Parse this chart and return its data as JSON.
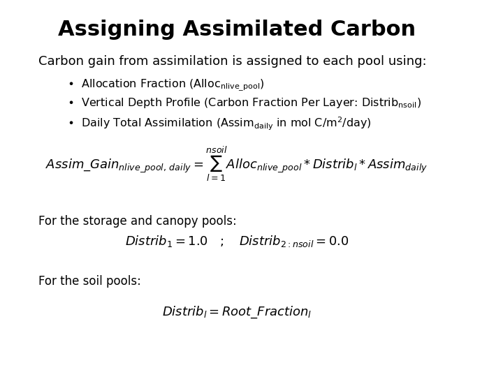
{
  "title": "Assigning Assimilated Carbon",
  "title_fontsize": 22,
  "title_fontweight": "bold",
  "bg_color": "#ffffff",
  "text_color": "#000000",
  "subtitle": "Carbon gain from assimilation is assigned to each pool using:",
  "subtitle_fontsize": 13,
  "bullet1": "Allocation Fraction (Alloc",
  "bullet1_sub": "nlive_pool",
  "bullet2_pre": "Vertical Depth Profile (Carbon Fraction Per Layer: Distrib",
  "bullet2_sub": "nsoil",
  "bullet3_pre": "Daily Total Assimilation (Assim",
  "bullet3_sub": "daily",
  "bullet3_post": " in mol C/m²/day)",
  "storage_label": "For the storage and canopy pools:",
  "soil_label": "For the soil pools:",
  "eq1": "Assim\\_Gain_{nlive\\_pool,\\,daily} = \\sum_{l=1}^{nsoil} Alloc_{nlive\\_pool} * Distrib_l * Assim_{daily}",
  "eq2": "Distrib_l = 1.0 \\quad ; \\quad Distrib_{2:nsoil} = 0.0",
  "eq3": "Distrib_l = Root\\_Fraction_l"
}
